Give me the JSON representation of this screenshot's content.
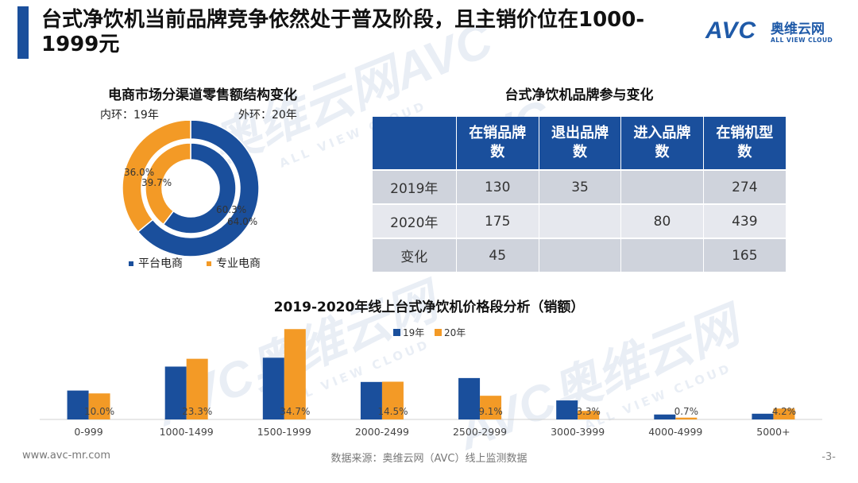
{
  "header": {
    "title": "台式净饮机当前品牌竞争依然处于普及阶段，且主销价位在1000-\n1999元"
  },
  "logo": {
    "avc": "AVC",
    "cn": "奥维云网",
    "en": "ALL VIEW CLOUD"
  },
  "watermark": {
    "cn": "奥维云网",
    "avc": "AVC",
    "en": "ALL VIEW CLOUD"
  },
  "colors": {
    "primary": "#1a4f9c",
    "secondary": "#f39a26"
  },
  "donut": {
    "title": "电商市场分渠道零售额结构变化",
    "inner_label": "内环：19年",
    "outer_label": "外环：20年"
  },
  "table": {
    "title": "台式净饮机品牌参与变化",
    "headers": [
      "",
      "在销品牌数",
      "退出品牌数",
      "进入品牌数",
      "在销机型数"
    ],
    "rows": [
      [
        "2019年",
        "130",
        "35",
        "",
        "274"
      ],
      [
        "2020年",
        "175",
        "",
        "80",
        "439"
      ],
      [
        "变化",
        "45",
        "",
        "",
        "165"
      ]
    ]
  },
  "bars": {
    "title": "2019-2020年线上台式净饮机价格段分析（销额）"
  },
  "chart_data": [
    {
      "type": "pie",
      "title": "电商市场分渠道零售额结构变化",
      "legend": [
        "平台电商",
        "专业电商"
      ],
      "series": [
        {
          "name": "内环：19年",
          "labels": [
            "平台电商",
            "专业电商"
          ],
          "values": [
            60.3,
            39.7
          ],
          "display": [
            "60.3%",
            "39.7%"
          ]
        },
        {
          "name": "外环：20年",
          "labels": [
            "平台电商",
            "专业电商"
          ],
          "values": [
            64.0,
            36.0
          ],
          "display": [
            "64.0%",
            "36.0%"
          ]
        }
      ]
    },
    {
      "type": "bar",
      "title": "2019-2020年线上台式净饮机价格段分析（销额）",
      "categories": [
        "0-999",
        "1000-1499",
        "1500-1999",
        "2000-2499",
        "2500-2999",
        "3000-3999",
        "4000-4999",
        "5000+"
      ],
      "series": [
        {
          "name": "19年",
          "values": [
            11.1,
            20.3,
            23.7,
            14.4,
            15.9,
            7.3,
            1.9,
            2.2
          ]
        },
        {
          "name": "20年",
          "values": [
            10.0,
            23.3,
            34.7,
            14.5,
            9.1,
            3.3,
            0.7,
            4.2
          ]
        }
      ],
      "data_labels": [
        "10.0%",
        "23.3%",
        "34.7%",
        "14.5%",
        "9.1%",
        "3.3%",
        "0.7%",
        "4.2%"
      ],
      "ylim": [
        0,
        36
      ],
      "legend": "top-center"
    }
  ],
  "footer": {
    "website": "www.avc-mr.com",
    "source": "数据来源：奥维云网（AVC）线上监测数据",
    "page": "-3-"
  }
}
